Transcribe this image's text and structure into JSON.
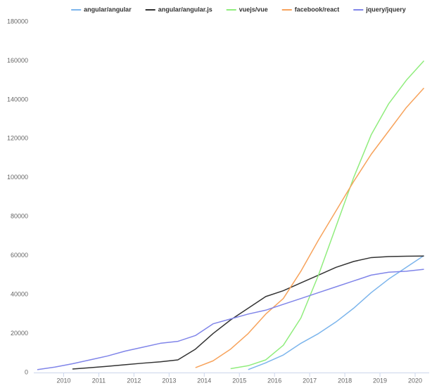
{
  "chart_data": {
    "type": "line",
    "x": [
      2009.25,
      2009.75,
      2010.25,
      2010.75,
      2011.25,
      2011.75,
      2012.25,
      2012.75,
      2013.25,
      2013.75,
      2014.25,
      2014.75,
      2015.25,
      2015.75,
      2016.25,
      2016.75,
      2017.25,
      2017.75,
      2018.25,
      2018.75,
      2019.25,
      2019.75,
      2020.25
    ],
    "series": [
      {
        "name": "angular/angular",
        "color": "#7cb5ec",
        "values": [
          null,
          null,
          null,
          null,
          null,
          null,
          null,
          null,
          null,
          null,
          null,
          null,
          1500,
          5000,
          9000,
          15000,
          20000,
          26000,
          33000,
          41000,
          48000,
          54000,
          60000
        ]
      },
      {
        "name": "angular/angular.js",
        "color": "#333333",
        "values": [
          null,
          null,
          1800,
          2500,
          3200,
          4000,
          4800,
          5500,
          6500,
          12000,
          20000,
          27000,
          33000,
          39000,
          42000,
          46000,
          50000,
          54000,
          57000,
          59000,
          59500,
          59700,
          59800
        ]
      },
      {
        "name": "vuejs/vue",
        "color": "#90ed7d",
        "values": [
          null,
          null,
          null,
          null,
          null,
          null,
          null,
          null,
          null,
          null,
          null,
          2000,
          3500,
          6500,
          14000,
          28000,
          50000,
          75000,
          100000,
          122000,
          138000,
          150000,
          160000
        ]
      },
      {
        "name": "facebook/react",
        "color": "#f7a35c",
        "values": [
          null,
          null,
          null,
          null,
          null,
          null,
          null,
          null,
          null,
          2500,
          6000,
          12000,
          20000,
          30000,
          38000,
          52000,
          68000,
          83000,
          98000,
          112000,
          124000,
          136000,
          146000
        ]
      },
      {
        "name": "jquery/jquery",
        "color": "#8085e9",
        "values": [
          1500,
          2800,
          4500,
          6500,
          8500,
          11000,
          13000,
          15000,
          16000,
          19000,
          25000,
          27500,
          30000,
          32000,
          35000,
          38000,
          41000,
          44000,
          47000,
          50000,
          51500,
          52000,
          53000
        ]
      }
    ],
    "xlim": [
      2009.15,
      2020.4
    ],
    "xticks": [
      2010,
      2011,
      2012,
      2013,
      2014,
      2015,
      2016,
      2017,
      2018,
      2019,
      2020
    ],
    "ylim": [
      0,
      180000
    ],
    "yticks": [
      0,
      20000,
      40000,
      60000,
      80000,
      100000,
      120000,
      140000,
      160000,
      180000
    ],
    "grid": false,
    "legend": "top"
  }
}
